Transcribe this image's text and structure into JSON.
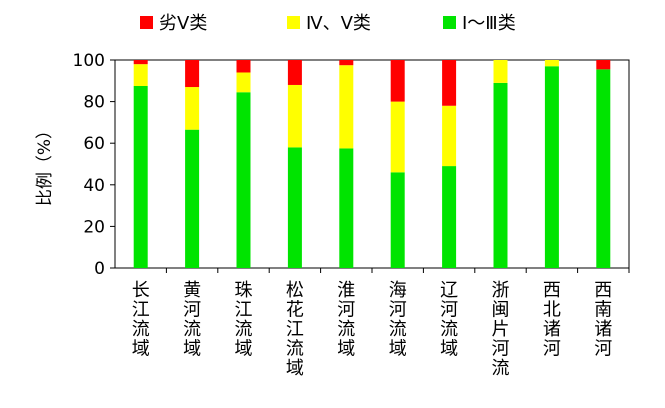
{
  "chart_data": {
    "type": "bar",
    "stacked": true,
    "ylabel": "比例（%）",
    "ylim": [
      0,
      100
    ],
    "yticks": [
      0,
      20,
      40,
      60,
      80,
      100
    ],
    "grid": false,
    "legend_position": "top",
    "categories": [
      "长江流域",
      "黄河流域",
      "珠江流域",
      "松花江流域",
      "淮河流域",
      "海河流域",
      "辽河流域",
      "浙闽片河流",
      "西北诸河",
      "西南诸河"
    ],
    "series": [
      {
        "name": "Ⅰ～Ⅲ类",
        "color": "#00e400",
        "values": [
          87.5,
          66.5,
          84.5,
          58,
          57.5,
          46,
          49,
          89,
          97,
          95.5
        ]
      },
      {
        "name": "Ⅳ、Ⅴ类",
        "color": "#ffff00",
        "values": [
          10.5,
          20.5,
          9.5,
          30,
          40,
          34,
          29,
          11,
          3,
          0
        ]
      },
      {
        "name": "劣Ⅴ类",
        "color": "#ff0000",
        "values": [
          2,
          13,
          6,
          12,
          2.5,
          20,
          22,
          0,
          0,
          4.5
        ]
      }
    ]
  }
}
